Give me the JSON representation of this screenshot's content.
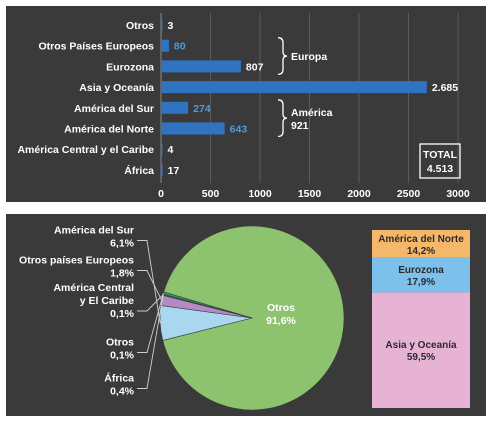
{
  "chart_data": [
    {
      "type": "bar",
      "orientation": "horizontal",
      "categories": [
        "Otros",
        "Otros Países Europeos",
        "Eurozona",
        "Asia y Oceanía",
        "América del Sur",
        "América del Norte",
        "América Central y el Caribe",
        "África"
      ],
      "values": [
        3,
        80,
        807,
        2685,
        274,
        643,
        4,
        17
      ],
      "value_labels": [
        "3",
        "80",
        "807",
        "2.685",
        "274",
        "643",
        "4",
        "17"
      ],
      "xlim": [
        0,
        3000
      ],
      "x_ticks": [
        "0",
        "500",
        "1000",
        "1500",
        "2000",
        "2500",
        "3000"
      ],
      "grid": "vertical",
      "colors": {
        "background": "#3a3a3a",
        "bar": "#2e74c0",
        "label": "#ffffff",
        "value_blue": "#4f9ad8",
        "grid": "#5a5a5a"
      },
      "annotations": [
        {
          "label": "Europa",
          "value": "",
          "categories": [
            "Otros Países Europeos",
            "Eurozona"
          ]
        },
        {
          "label": "América",
          "value": "921",
          "categories": [
            "América del Sur",
            "América del Norte"
          ]
        }
      ],
      "total_box": {
        "label": "TOTAL",
        "value": "4.513"
      }
    },
    {
      "type": "pie",
      "slices": [
        {
          "name": "Otros",
          "value": 91.6,
          "label": "91,6%",
          "color": "#8dc26e"
        },
        {
          "name": "América del Sur",
          "value": 6.1,
          "label": "6,1%",
          "color": "#a9d7f0"
        },
        {
          "name": "Otros países Europeos",
          "value": 1.8,
          "label": "1,8%",
          "color": "#b58ac4"
        },
        {
          "name": "América Central y El Caribe",
          "value": 0.1,
          "label": "0,1%",
          "color": "#c9a4d4"
        },
        {
          "name": "Otros",
          "value": 0.1,
          "label": "0,1%",
          "color": "#e6a56a"
        },
        {
          "name": "África",
          "value": 0.4,
          "label": "0,4%",
          "color": "#2e9a5c"
        }
      ],
      "side_labels": [
        {
          "lines": [
            "América del Sur",
            "6,1%"
          ],
          "slice": 1
        },
        {
          "lines": [
            "Otros países Europeos",
            "1,8%"
          ],
          "slice": 2
        },
        {
          "lines": [
            "América Central",
            "y El Caribe",
            "0,1%"
          ],
          "slice": 3
        },
        {
          "lines": [
            "Otros",
            "0,1%"
          ],
          "slice": 4
        },
        {
          "lines": [
            "África",
            "0,4%"
          ],
          "slice": 5
        }
      ],
      "inner_label": {
        "lines": [
          "Otros",
          "91,6%"
        ]
      },
      "breakdown": {
        "title_hidden": "Otros",
        "segments": [
          {
            "name": "América del Norte",
            "value": 14.2,
            "label": "14,2%",
            "color": "#f5b86a"
          },
          {
            "name": "Eurozona",
            "value": 17.9,
            "label": "17,9%",
            "color": "#7cc0ec"
          },
          {
            "name": "Asia y Oceanía",
            "value": 59.5,
            "label": "59,5%",
            "color": "#e7b3d4"
          }
        ]
      },
      "colors": {
        "background": "#3a3a3a",
        "label": "#ffffff",
        "dark_label": "#2b2b2b",
        "connector": "#cfcfcf"
      }
    }
  ]
}
